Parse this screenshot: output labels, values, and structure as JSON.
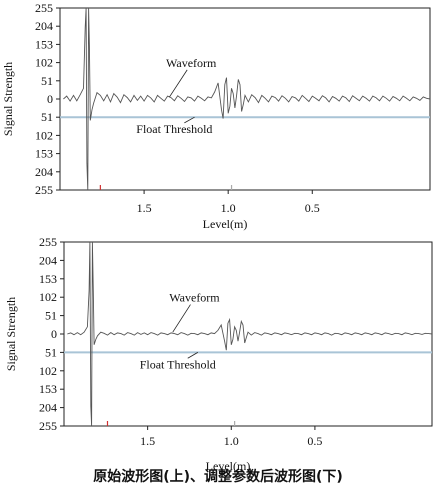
{
  "caption": "原始波形图(上)、调整参数后波形图(下)",
  "colors": {
    "waveform": "#555555",
    "threshold": "#a9c4d6",
    "marker_red": "#d03030",
    "marker_gray": "#aaaaaa"
  },
  "chart_data": [
    {
      "type": "line",
      "title": "",
      "ylabel": "Signal Strength",
      "xlabel": "Level(m)",
      "y_ticks": [
        "255",
        "204",
        "153",
        "102",
        "51",
        "0",
        "51",
        "102",
        "153",
        "204",
        "255"
      ],
      "x_ticks": [
        {
          "label": "1.5",
          "value": 1.5
        },
        {
          "label": "1.0",
          "value": 1.0
        },
        {
          "label": "0.5",
          "value": 0.5
        }
      ],
      "xlim": [
        2.0,
        -0.2
      ],
      "ylim": [
        -255,
        255
      ],
      "series": [
        {
          "name": "Waveform",
          "points": [
            [
              1.98,
              0
            ],
            [
              1.96,
              8
            ],
            [
              1.94,
              -6
            ],
            [
              1.92,
              10
            ],
            [
              1.9,
              -5
            ],
            [
              1.88,
              12
            ],
            [
              1.86,
              30
            ],
            [
              1.85,
              200
            ],
            [
              1.845,
              255
            ],
            [
              1.84,
              -180
            ],
            [
              1.835,
              -255
            ],
            [
              1.83,
              255
            ],
            [
              1.825,
              150
            ],
            [
              1.82,
              -60
            ],
            [
              1.81,
              -30
            ],
            [
              1.8,
              -12
            ],
            [
              1.78,
              18
            ],
            [
              1.76,
              10
            ],
            [
              1.74,
              -5
            ],
            [
              1.72,
              12
            ],
            [
              1.7,
              -8
            ],
            [
              1.68,
              15
            ],
            [
              1.66,
              5
            ],
            [
              1.64,
              -10
            ],
            [
              1.62,
              12
            ],
            [
              1.6,
              4
            ],
            [
              1.58,
              -8
            ],
            [
              1.56,
              10
            ],
            [
              1.54,
              -4
            ],
            [
              1.52,
              8
            ],
            [
              1.5,
              -6
            ],
            [
              1.48,
              10
            ],
            [
              1.46,
              3
            ],
            [
              1.44,
              -8
            ],
            [
              1.42,
              10
            ],
            [
              1.4,
              2
            ],
            [
              1.38,
              -6
            ],
            [
              1.36,
              8
            ],
            [
              1.34,
              4
            ],
            [
              1.32,
              -5
            ],
            [
              1.3,
              9
            ],
            [
              1.28,
              2
            ],
            [
              1.26,
              -7
            ],
            [
              1.24,
              6
            ],
            [
              1.22,
              3
            ],
            [
              1.2,
              -6
            ],
            [
              1.18,
              8
            ],
            [
              1.16,
              2
            ],
            [
              1.14,
              -5
            ],
            [
              1.12,
              6
            ],
            [
              1.1,
              3
            ],
            [
              1.08,
              20
            ],
            [
              1.06,
              45
            ],
            [
              1.04,
              -30
            ],
            [
              1.03,
              -55
            ],
            [
              1.02,
              40
            ],
            [
              1.01,
              60
            ],
            [
              1.0,
              -40
            ],
            [
              0.99,
              -20
            ],
            [
              0.98,
              30
            ],
            [
              0.97,
              15
            ],
            [
              0.96,
              -25
            ],
            [
              0.95,
              10
            ],
            [
              0.94,
              55
            ],
            [
              0.93,
              40
            ],
            [
              0.92,
              -35
            ],
            [
              0.91,
              -15
            ],
            [
              0.9,
              10
            ],
            [
              0.88,
              -8
            ],
            [
              0.86,
              12
            ],
            [
              0.84,
              4
            ],
            [
              0.82,
              -10
            ],
            [
              0.8,
              10
            ],
            [
              0.78,
              2
            ],
            [
              0.76,
              -8
            ],
            [
              0.74,
              8
            ],
            [
              0.72,
              4
            ],
            [
              0.7,
              -6
            ],
            [
              0.68,
              9
            ],
            [
              0.66,
              2
            ],
            [
              0.64,
              -8
            ],
            [
              0.62,
              7
            ],
            [
              0.6,
              3
            ],
            [
              0.58,
              -6
            ],
            [
              0.56,
              10
            ],
            [
              0.54,
              2
            ],
            [
              0.52,
              -7
            ],
            [
              0.5,
              8
            ],
            [
              0.48,
              2
            ],
            [
              0.46,
              -5
            ],
            [
              0.44,
              9
            ],
            [
              0.42,
              3
            ],
            [
              0.4,
              -8
            ],
            [
              0.38,
              7
            ],
            [
              0.36,
              2
            ],
            [
              0.34,
              -6
            ],
            [
              0.32,
              8
            ],
            [
              0.3,
              3
            ],
            [
              0.28,
              -7
            ],
            [
              0.26,
              9
            ],
            [
              0.24,
              2
            ],
            [
              0.22,
              -5
            ],
            [
              0.2,
              8
            ],
            [
              0.18,
              2
            ],
            [
              0.16,
              -6
            ],
            [
              0.14,
              8
            ],
            [
              0.12,
              3
            ],
            [
              0.1,
              -5
            ],
            [
              0.08,
              8
            ],
            [
              0.06,
              2
            ],
            [
              0.04,
              -6
            ],
            [
              0.02,
              7
            ],
            [
              0.0,
              2
            ],
            [
              -0.02,
              -5
            ],
            [
              -0.04,
              8
            ],
            [
              -0.06,
              2
            ],
            [
              -0.08,
              -5
            ],
            [
              -0.1,
              6
            ],
            [
              -0.12,
              2
            ],
            [
              -0.14,
              -4
            ],
            [
              -0.16,
              6
            ],
            [
              -0.18,
              2
            ],
            [
              -0.2,
              0
            ]
          ]
        },
        {
          "name": "Float Threshold",
          "points": [
            [
              2.0,
              -51
            ],
            [
              -0.2,
              -51
            ]
          ]
        }
      ],
      "markers": [
        {
          "x": 1.76,
          "color": "marker_red"
        },
        {
          "x": 0.98,
          "color": "marker_gray"
        }
      ],
      "annotations": {
        "waveform_label": "Waveform",
        "threshold_label": "Float Threshold"
      }
    },
    {
      "type": "line",
      "title": "",
      "ylabel": "Signal Strength",
      "xlabel": "Level(m)",
      "y_ticks": [
        "255",
        "204",
        "153",
        "102",
        "51",
        "0",
        "51",
        "102",
        "153",
        "204",
        "255"
      ],
      "x_ticks": [
        {
          "label": "1.5",
          "value": 1.5
        },
        {
          "label": "1.0",
          "value": 1.0
        },
        {
          "label": "0.5",
          "value": 0.5
        }
      ],
      "xlim": [
        2.0,
        -0.2
      ],
      "ylim": [
        -255,
        255
      ],
      "series": [
        {
          "name": "Waveform",
          "points": [
            [
              1.98,
              0
            ],
            [
              1.96,
              3
            ],
            [
              1.94,
              -2
            ],
            [
              1.92,
              4
            ],
            [
              1.9,
              -2
            ],
            [
              1.88,
              5
            ],
            [
              1.86,
              20
            ],
            [
              1.85,
              120
            ],
            [
              1.845,
              255
            ],
            [
              1.84,
              -200
            ],
            [
              1.835,
              -255
            ],
            [
              1.83,
              255
            ],
            [
              1.825,
              120
            ],
            [
              1.82,
              -30
            ],
            [
              1.81,
              -15
            ],
            [
              1.8,
              -5
            ],
            [
              1.78,
              5
            ],
            [
              1.76,
              2
            ],
            [
              1.74,
              -3
            ],
            [
              1.72,
              4
            ],
            [
              1.7,
              -2
            ],
            [
              1.68,
              3
            ],
            [
              1.66,
              1
            ],
            [
              1.64,
              -3
            ],
            [
              1.62,
              4
            ],
            [
              1.6,
              1
            ],
            [
              1.58,
              -3
            ],
            [
              1.56,
              4
            ],
            [
              1.54,
              -1
            ],
            [
              1.52,
              3
            ],
            [
              1.5,
              -2
            ],
            [
              1.48,
              4
            ],
            [
              1.46,
              1
            ],
            [
              1.44,
              -3
            ],
            [
              1.42,
              3
            ],
            [
              1.4,
              1
            ],
            [
              1.38,
              -2
            ],
            [
              1.36,
              3
            ],
            [
              1.34,
              1
            ],
            [
              1.32,
              -2
            ],
            [
              1.3,
              4
            ],
            [
              1.28,
              1
            ],
            [
              1.26,
              -3
            ],
            [
              1.24,
              2
            ],
            [
              1.22,
              1
            ],
            [
              1.2,
              -2
            ],
            [
              1.18,
              3
            ],
            [
              1.16,
              1
            ],
            [
              1.14,
              -2
            ],
            [
              1.12,
              3
            ],
            [
              1.1,
              1
            ],
            [
              1.08,
              10
            ],
            [
              1.06,
              25
            ],
            [
              1.04,
              -20
            ],
            [
              1.03,
              -45
            ],
            [
              1.02,
              30
            ],
            [
              1.01,
              40
            ],
            [
              1.0,
              -30
            ],
            [
              0.99,
              -15
            ],
            [
              0.98,
              20
            ],
            [
              0.97,
              10
            ],
            [
              0.96,
              -20
            ],
            [
              0.95,
              5
            ],
            [
              0.94,
              35
            ],
            [
              0.93,
              25
            ],
            [
              0.92,
              -25
            ],
            [
              0.91,
              -10
            ],
            [
              0.9,
              5
            ],
            [
              0.88,
              -3
            ],
            [
              0.86,
              4
            ],
            [
              0.84,
              1
            ],
            [
              0.82,
              -3
            ],
            [
              0.8,
              3
            ],
            [
              0.78,
              1
            ],
            [
              0.76,
              -2
            ],
            [
              0.74,
              3
            ],
            [
              0.72,
              1
            ],
            [
              0.7,
              -2
            ],
            [
              0.68,
              3
            ],
            [
              0.66,
              1
            ],
            [
              0.64,
              -2
            ],
            [
              0.62,
              2
            ],
            [
              0.6,
              1
            ],
            [
              0.58,
              -2
            ],
            [
              0.56,
              3
            ],
            [
              0.54,
              1
            ],
            [
              0.52,
              -2
            ],
            [
              0.5,
              3
            ],
            [
              0.48,
              1
            ],
            [
              0.46,
              -2
            ],
            [
              0.44,
              3
            ],
            [
              0.42,
              1
            ],
            [
              0.4,
              -3
            ],
            [
              0.38,
              2
            ],
            [
              0.36,
              1
            ],
            [
              0.34,
              -2
            ],
            [
              0.32,
              3
            ],
            [
              0.3,
              1
            ],
            [
              0.28,
              -2
            ],
            [
              0.26,
              3
            ],
            [
              0.24,
              1
            ],
            [
              0.22,
              -2
            ],
            [
              0.2,
              3
            ],
            [
              0.18,
              1
            ],
            [
              0.16,
              -2
            ],
            [
              0.14,
              3
            ],
            [
              0.12,
              1
            ],
            [
              0.1,
              -2
            ],
            [
              0.08,
              3
            ],
            [
              0.06,
              1
            ],
            [
              0.04,
              -2
            ],
            [
              0.02,
              2
            ],
            [
              0.0,
              1
            ],
            [
              -0.02,
              -2
            ],
            [
              -0.04,
              3
            ],
            [
              -0.06,
              1
            ],
            [
              -0.08,
              -2
            ],
            [
              -0.1,
              2
            ],
            [
              -0.12,
              1
            ],
            [
              -0.14,
              -1
            ],
            [
              -0.16,
              2
            ],
            [
              -0.18,
              1
            ],
            [
              -0.2,
              0
            ]
          ]
        },
        {
          "name": "Float Threshold",
          "points": [
            [
              2.0,
              -51
            ],
            [
              -0.2,
              -51
            ]
          ]
        }
      ],
      "markers": [
        {
          "x": 1.74,
          "color": "marker_red"
        },
        {
          "x": 0.98,
          "color": "marker_gray"
        }
      ],
      "annotations": {
        "waveform_label": "Waveform",
        "threshold_label": "Float Threshold"
      }
    }
  ]
}
